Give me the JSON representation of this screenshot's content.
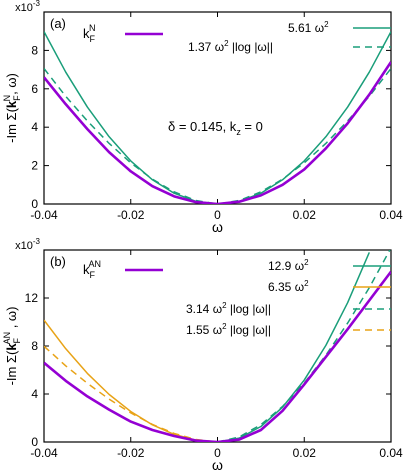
{
  "chart_data": [
    {
      "type": "line",
      "panel_label": "(a)",
      "title": "",
      "xlabel": "ω",
      "ylabel": "-Im Σ(kF^N, ω)",
      "ylabel_parts": {
        "pre": "-Im Σ(",
        "k": "k",
        "sub": "F",
        "sup": "N",
        "post": ", ω)"
      },
      "y_multiplier": "x10",
      "y_multiplier_exp": "-3",
      "xlim": [
        -0.04,
        0.04
      ],
      "ylim": [
        0,
        0.01
      ],
      "xticks": [
        -0.04,
        -0.02,
        0,
        0.02,
        0.04
      ],
      "xtick_labels": [
        "-0.04",
        "-0.02",
        "0",
        "0.02",
        "0.04"
      ],
      "yticks": [
        0,
        0.002,
        0.004,
        0.006,
        0.008,
        0.01
      ],
      "ytick_labels": [
        "0",
        "2",
        "4",
        "6",
        "8",
        ""
      ],
      "annotation": "δ = 0.145, k",
      "annotation_sub": "z",
      "annotation_tail": " = 0",
      "legend_position": "top",
      "series": [
        {
          "name": "kF^N",
          "label_parts": {
            "base": "k",
            "sub": "F",
            "sup": "N"
          },
          "color": "#9400d3",
          "dash": "solid",
          "width": 2.6,
          "x": [
            -0.04,
            -0.035,
            -0.03,
            -0.025,
            -0.02,
            -0.015,
            -0.01,
            -0.005,
            0,
            0.005,
            0.01,
            0.015,
            0.02,
            0.025,
            0.03,
            0.035,
            0.04
          ],
          "y": [
            0.0066,
            0.0052,
            0.0039,
            0.0027,
            0.0017,
            0.00093,
            0.0004,
            0.0001,
            0,
            0.00012,
            0.00045,
            0.001,
            0.0018,
            0.0029,
            0.0042,
            0.0057,
            0.0074
          ]
        },
        {
          "name": "5.61 ω²",
          "label_parts": {
            "base": "5.61 ω",
            "sup": "2"
          },
          "color": "#1a9e7a",
          "dash": "solid",
          "width": 1.5,
          "x": [
            -0.04,
            -0.035,
            -0.03,
            -0.025,
            -0.02,
            -0.015,
            -0.01,
            -0.005,
            0,
            0.005,
            0.01,
            0.015,
            0.02,
            0.025,
            0.03,
            0.035,
            0.04
          ],
          "y": [
            0.008976,
            0.006872,
            0.005049,
            0.003506,
            0.002244,
            0.001262,
            0.000561,
            0.00014,
            0,
            0.00014,
            0.000561,
            0.001262,
            0.002244,
            0.003506,
            0.005049,
            0.006872,
            0.008976
          ]
        },
        {
          "name": "1.37 ω² |log |ω||",
          "label_parts": {
            "base": "1.37 ω",
            "sup": "2",
            "tail": " |log |ω||"
          },
          "color": "#1a9e7a",
          "dash": "dashed",
          "width": 1.5,
          "x": [
            -0.04,
            -0.035,
            -0.03,
            -0.025,
            -0.02,
            -0.015,
            -0.01,
            -0.005,
            0,
            0.005,
            0.01,
            0.015,
            0.02,
            0.025,
            0.03,
            0.035,
            0.04
          ],
          "y": [
            0.007057,
            0.005611,
            0.004324,
            0.003158,
            0.002144,
            0.001292,
            0.000631,
            0.000181,
            0,
            0.000181,
            0.000631,
            0.001292,
            0.002144,
            0.003158,
            0.004324,
            0.005611,
            0.007057
          ]
        }
      ]
    },
    {
      "type": "line",
      "panel_label": "(b)",
      "title": "",
      "xlabel": "ω",
      "ylabel": "-Im Σ(kF^AN, ω)",
      "ylabel_parts": {
        "pre": "-Im Σ(",
        "k": "k",
        "sub": "F",
        "sup": "AN",
        "post": " , ω)"
      },
      "y_multiplier": "x10",
      "y_multiplier_exp": "-3",
      "xlim": [
        -0.04,
        0.04
      ],
      "ylim": [
        0,
        0.016
      ],
      "xticks": [
        -0.04,
        -0.02,
        0,
        0.02,
        0.04
      ],
      "xtick_labels": [
        "-0.04",
        "-0.02",
        "0",
        "0.02",
        "0.04"
      ],
      "yticks": [
        0,
        0.004,
        0.008,
        0.012,
        0.016
      ],
      "ytick_labels": [
        "0",
        "4",
        "8",
        "12",
        ""
      ],
      "legend_position": "top",
      "series": [
        {
          "name": "kF^AN",
          "label_parts": {
            "base": "k",
            "sub": "F",
            "sup": "AN"
          },
          "color": "#9400d3",
          "dash": "solid",
          "width": 2.6,
          "x": [
            -0.04,
            -0.035,
            -0.03,
            -0.025,
            -0.02,
            -0.015,
            -0.01,
            -0.005,
            0,
            0.005,
            0.01,
            0.015,
            0.02,
            0.025,
            0.03,
            0.035,
            0.04
          ],
          "y": [
            0.0066,
            0.0051,
            0.0038,
            0.0027,
            0.0017,
            0.001,
            0.0005,
            0.00012,
            0,
            0.0002,
            0.001,
            0.0026,
            0.0048,
            0.0071,
            0.0094,
            0.0118,
            0.0142
          ]
        },
        {
          "name": "12.9 ω²",
          "label_parts": {
            "base": "12.9 ω",
            "sup": "2"
          },
          "color": "#1a9e7a",
          "dash": "solid",
          "width": 1.5,
          "x": [
            0,
            0.005,
            0.01,
            0.015,
            0.02,
            0.025,
            0.03,
            0.035
          ],
          "y": [
            0,
            0.000323,
            0.00129,
            0.002903,
            0.00516,
            0.008063,
            0.01161,
            0.015803
          ]
        },
        {
          "name": "6.35 ω²",
          "label_parts": {
            "base": "6.35 ω",
            "sup": "2"
          },
          "color": "#e8a317",
          "dash": "solid",
          "width": 1.5,
          "x": [
            -0.04,
            -0.035,
            -0.03,
            -0.025,
            -0.02,
            -0.015,
            -0.01,
            -0.005,
            0
          ],
          "y": [
            0.01016,
            0.007779,
            0.005715,
            0.003969,
            0.00254,
            0.001429,
            0.000635,
            0.000159,
            0
          ]
        },
        {
          "name": "3.14 ω² |log |ω||",
          "label_parts": {
            "base": "3.14 ω",
            "sup": "2",
            "tail": " |log |ω||"
          },
          "color": "#1a9e7a",
          "dash": "dashed",
          "width": 1.5,
          "x": [
            0,
            0.005,
            0.01,
            0.015,
            0.02,
            0.025,
            0.03,
            0.035,
            0.04
          ],
          "y": [
            0,
            0.000416,
            0.001446,
            0.002961,
            0.004913,
            0.007239,
            0.00991,
            0.01286,
            0.016174
          ]
        },
        {
          "name": "1.55 ω² |log |ω||",
          "label_parts": {
            "base": "1.55 ω",
            "sup": "2",
            "tail": " |log |ω||"
          },
          "color": "#e8a317",
          "dash": "dashed",
          "width": 1.5,
          "x": [
            -0.04,
            -0.035,
            -0.03,
            -0.025,
            -0.02,
            -0.015,
            -0.01,
            -0.005,
            0
          ],
          "y": [
            0.007984,
            0.006348,
            0.004892,
            0.003573,
            0.002425,
            0.001462,
            0.000714,
            0.000205,
            0
          ]
        }
      ]
    }
  ]
}
